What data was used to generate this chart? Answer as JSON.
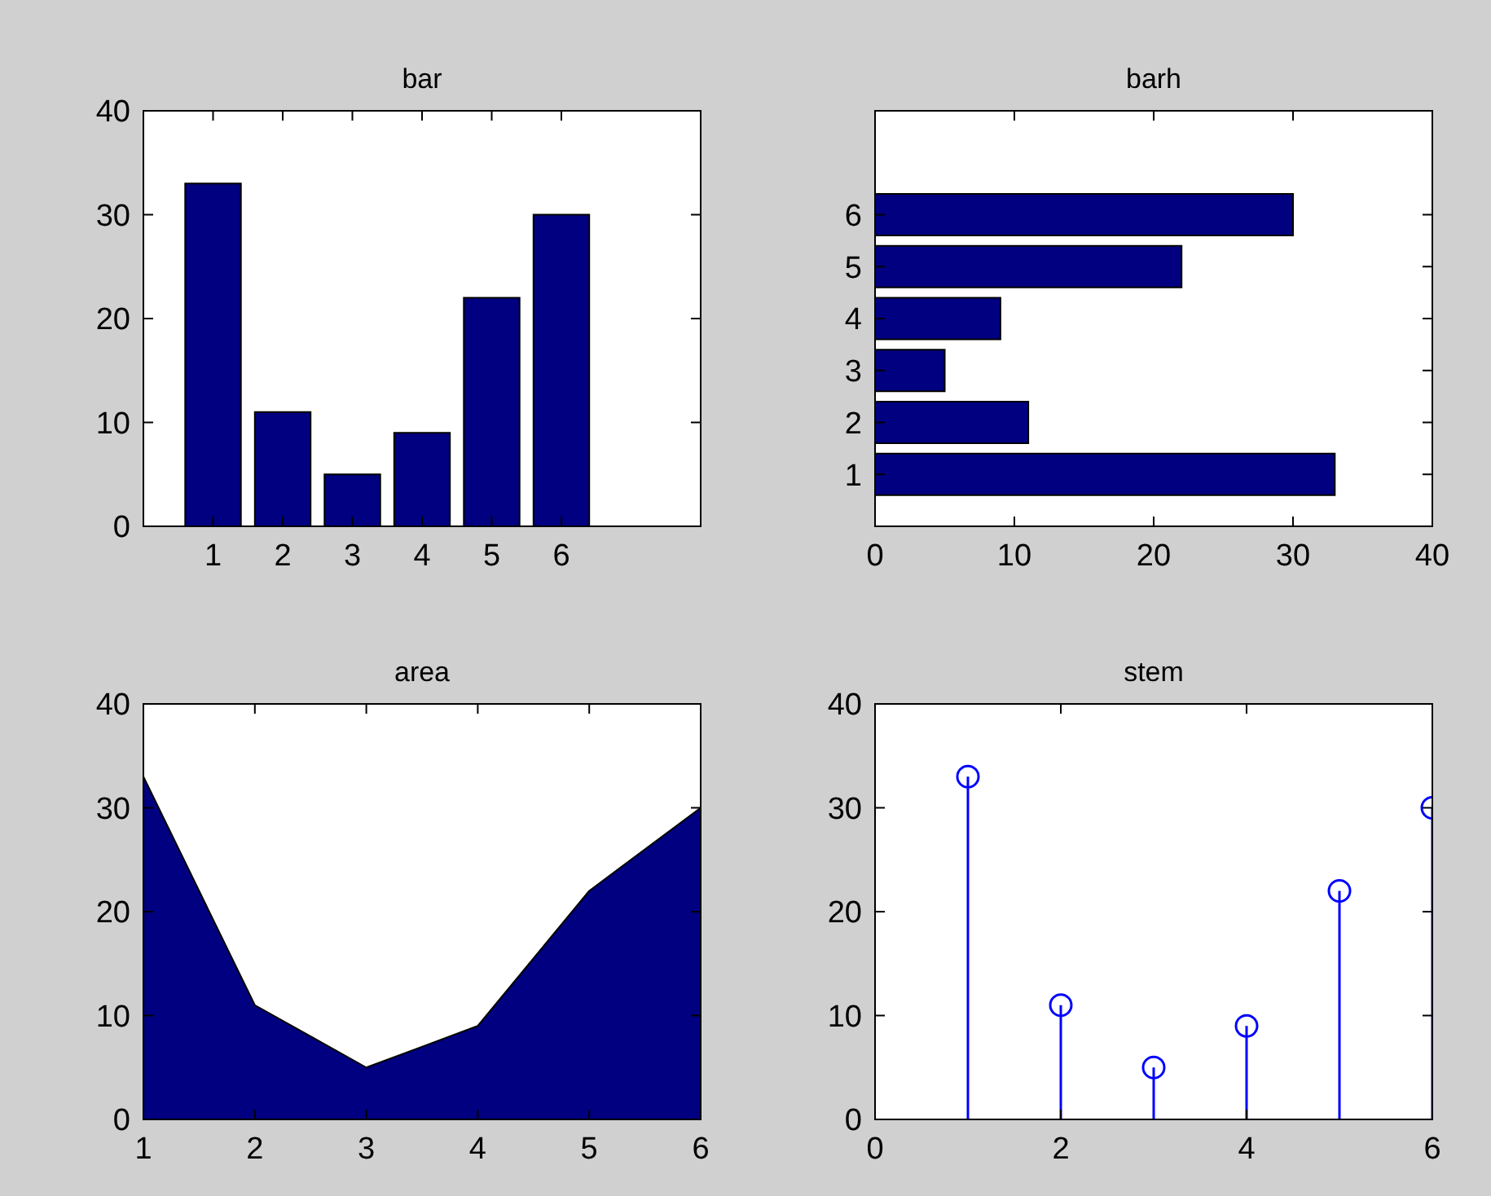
{
  "chart_data": [
    {
      "type": "bar",
      "title": "bar",
      "x": [
        1,
        2,
        3,
        4,
        5,
        6
      ],
      "values": [
        33,
        11,
        5,
        9,
        22,
        30
      ],
      "color": "#000080",
      "xlim": [
        0,
        8
      ],
      "xticks": [
        1,
        2,
        3,
        4,
        5,
        6
      ],
      "ylim": [
        0,
        40
      ],
      "yticks": [
        0,
        10,
        20,
        30,
        40
      ]
    },
    {
      "type": "bar",
      "title": "barh",
      "orientation": "horizontal",
      "x": [
        1,
        2,
        3,
        4,
        5,
        6
      ],
      "values": [
        33,
        11,
        5,
        9,
        22,
        30
      ],
      "color": "#000080",
      "xlim": [
        0,
        40
      ],
      "xticks": [
        0,
        10,
        20,
        30,
        40
      ],
      "ylim": [
        0,
        8
      ],
      "yticks": [
        1,
        2,
        3,
        4,
        5,
        6
      ]
    },
    {
      "type": "area",
      "title": "area",
      "x": [
        1,
        2,
        3,
        4,
        5,
        6
      ],
      "values": [
        33,
        11,
        5,
        9,
        22,
        30
      ],
      "color": "#000080",
      "xlim": [
        1,
        6
      ],
      "xticks": [
        1,
        2,
        3,
        4,
        5,
        6
      ],
      "ylim": [
        0,
        40
      ],
      "yticks": [
        0,
        10,
        20,
        30,
        40
      ]
    },
    {
      "type": "lollipop",
      "title": "stem",
      "x": [
        1,
        2,
        3,
        4,
        5,
        6
      ],
      "values": [
        33,
        11,
        5,
        9,
        22,
        30
      ],
      "color": "#0000ff",
      "marker": "circle",
      "xlim": [
        0,
        6
      ],
      "xticks": [
        0,
        2,
        4,
        6
      ],
      "ylim": [
        0,
        40
      ],
      "yticks": [
        0,
        10,
        20,
        30,
        40
      ]
    }
  ]
}
